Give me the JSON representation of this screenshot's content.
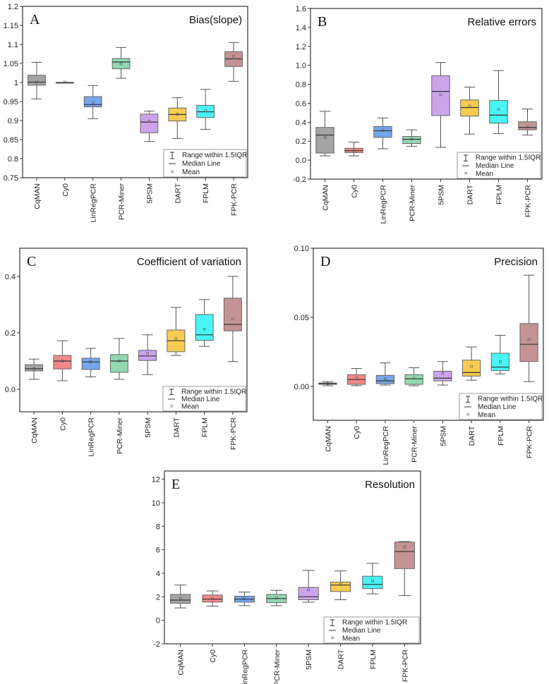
{
  "chart_data": [
    {
      "type": "box",
      "panel": "A",
      "title": "Bias(slope)",
      "ylim": [
        0.75,
        1.2
      ],
      "yticks": [
        0.75,
        0.8,
        0.85,
        0.9,
        0.95,
        1,
        1.05,
        1.1,
        1.15,
        1.2
      ],
      "ytick_labels": [
        "0.75",
        "0.8",
        "0.85",
        "0.9",
        "0.95",
        "1",
        "1.05",
        "1.1",
        "1.15",
        "1.2"
      ],
      "categories": [
        "CqMAN",
        "Cy0",
        "LinRegPCR",
        "PCR-Miner",
        "5PSM",
        "DART",
        "FPLM",
        "FPK-PCR"
      ],
      "boxes": [
        [
          0.957,
          0.993,
          1.001,
          1.019,
          1.053,
          1.001
        ],
        [
          1.0,
          1.0,
          1.0,
          1.0,
          1.0,
          1.001
        ],
        [
          0.905,
          0.936,
          0.942,
          0.963,
          0.992,
          0.947
        ],
        [
          1.011,
          1.036,
          1.054,
          1.063,
          1.092,
          1.049
        ],
        [
          0.845,
          0.868,
          0.896,
          0.917,
          0.925,
          0.899
        ],
        [
          0.853,
          0.899,
          0.916,
          0.933,
          0.96,
          0.917
        ],
        [
          0.877,
          0.908,
          0.923,
          0.94,
          0.982,
          0.926
        ],
        [
          1.003,
          1.042,
          1.062,
          1.081,
          1.105,
          1.069
        ]
      ]
    },
    {
      "type": "box",
      "panel": "B",
      "title": "Relative errors",
      "ylim": [
        -0.2,
        1.6
      ],
      "yticks": [
        -0.2,
        0,
        0.2,
        0.4,
        0.6,
        0.8,
        1.0,
        1.2,
        1.4,
        1.6
      ],
      "ytick_labels": [
        "-0.2",
        "0.0",
        "0.2",
        "0.4",
        "0.6",
        "0.8",
        "1.0",
        "1.2",
        "1.4",
        "1.6"
      ],
      "categories": [
        "CqMAN",
        "Cy0",
        "LinRegPCR",
        "PCR-Miner",
        "5PSM",
        "DART",
        "FPLM",
        "FPK-PCR"
      ],
      "boxes": [
        [
          0.045,
          0.075,
          0.265,
          0.345,
          0.515,
          0.24
        ],
        [
          0.045,
          0.08,
          0.1,
          0.125,
          0.19,
          0.1
        ],
        [
          0.12,
          0.24,
          0.31,
          0.355,
          0.445,
          0.315
        ],
        [
          0.145,
          0.175,
          0.22,
          0.25,
          0.32,
          0.225
        ],
        [
          0.135,
          0.47,
          0.725,
          0.89,
          1.03,
          0.69
        ],
        [
          0.275,
          0.465,
          0.555,
          0.635,
          0.77,
          0.57
        ],
        [
          0.28,
          0.39,
          0.475,
          0.63,
          0.945,
          0.535
        ],
        [
          0.265,
          0.32,
          0.345,
          0.405,
          0.54,
          0.35
        ]
      ]
    },
    {
      "type": "box",
      "panel": "C",
      "title": "Coefficient of variation",
      "ylim": [
        -0.08,
        0.5
      ],
      "yticks": [
        0,
        0.2,
        0.4
      ],
      "ytick_labels": [
        "0.0",
        "0.2",
        "0.4"
      ],
      "categories": [
        "CqMAN",
        "Cy0",
        "LinRegPCR",
        "PCR-Miner",
        "5PSM",
        "DART",
        "FPLM",
        "FPK-PCR"
      ],
      "boxes": [
        [
          0.035,
          0.065,
          0.073,
          0.087,
          0.107,
          0.073
        ],
        [
          0.03,
          0.072,
          0.1,
          0.12,
          0.172,
          0.1
        ],
        [
          0.044,
          0.07,
          0.097,
          0.11,
          0.145,
          0.097
        ],
        [
          0.035,
          0.06,
          0.1,
          0.123,
          0.18,
          0.1
        ],
        [
          0.052,
          0.102,
          0.118,
          0.138,
          0.193,
          0.127
        ],
        [
          0.12,
          0.133,
          0.172,
          0.21,
          0.29,
          0.18
        ],
        [
          0.152,
          0.173,
          0.193,
          0.265,
          0.318,
          0.213
        ],
        [
          0.098,
          0.207,
          0.23,
          0.323,
          0.4,
          0.25
        ]
      ]
    },
    {
      "type": "box",
      "panel": "D",
      "title": "Precision",
      "ylim": [
        -0.0245,
        0.1
      ],
      "yticks": [
        0,
        0.05,
        0.1
      ],
      "ytick_labels": [
        "0.00",
        "0.05",
        "0.10"
      ],
      "categories": [
        "CqMAN",
        "Cy0",
        "LinRegPCR",
        "PCR-Miner",
        "5PSM",
        "DART",
        "FPLM",
        "FPK-PCR"
      ],
      "boxes": [
        [
          0.0005,
          0.0015,
          0.002,
          0.0025,
          0.0035,
          0.002
        ],
        [
          0.0005,
          0.0015,
          0.005,
          0.0085,
          0.013,
          0.006
        ],
        [
          0.001,
          0.002,
          0.004,
          0.008,
          0.017,
          0.0055
        ],
        [
          0.0005,
          0.0015,
          0.0055,
          0.0085,
          0.0135,
          0.006
        ],
        [
          0.001,
          0.004,
          0.006,
          0.011,
          0.018,
          0.0095
        ],
        [
          0.0045,
          0.0075,
          0.01,
          0.019,
          0.0285,
          0.0145
        ],
        [
          0.009,
          0.0115,
          0.014,
          0.024,
          0.037,
          0.018
        ],
        [
          0.0035,
          0.018,
          0.0305,
          0.0455,
          0.0805,
          0.034
        ]
      ]
    },
    {
      "type": "box",
      "panel": "E",
      "title": "Resolution",
      "ylim": [
        -2,
        12.7
      ],
      "yticks": [
        -2,
        0,
        2,
        4,
        6,
        8,
        10,
        12
      ],
      "ytick_labels": [
        "-2",
        "0",
        "2",
        "4",
        "6",
        "8",
        "10",
        "12"
      ],
      "categories": [
        "CqMAN",
        "Cy0",
        "LinRegPCR",
        "PCR-Miner",
        "5PSM",
        "DART",
        "FPLM",
        "FPK-PCR"
      ],
      "boxes": [
        [
          1.05,
          1.45,
          1.72,
          2.2,
          3.0,
          1.85
        ],
        [
          1.2,
          1.55,
          1.8,
          2.15,
          2.5,
          1.85
        ],
        [
          1.25,
          1.55,
          1.8,
          2.05,
          2.4,
          1.85
        ],
        [
          1.25,
          1.5,
          1.85,
          2.2,
          2.55,
          1.9
        ],
        [
          1.55,
          1.75,
          2.0,
          2.8,
          4.25,
          2.6
        ],
        [
          1.75,
          2.45,
          3.0,
          3.25,
          4.2,
          3.05
        ],
        [
          2.25,
          2.7,
          3.05,
          3.75,
          4.85,
          3.35
        ],
        [
          2.1,
          4.4,
          5.85,
          6.65,
          6.7,
          6.25
        ]
      ]
    }
  ],
  "box_fields": [
    "whisker_low",
    "q1",
    "median",
    "q3",
    "whisker_high",
    "mean"
  ],
  "legend": [
    "Range within 1.5IQR",
    "Median Line",
    "Mean"
  ],
  "colors": [
    "#a4a4a4",
    "#f28a8a",
    "#76a6ec",
    "#92d8b0",
    "#cda4ec",
    "#f8cc50",
    "#48f4f4",
    "#c49494"
  ]
}
